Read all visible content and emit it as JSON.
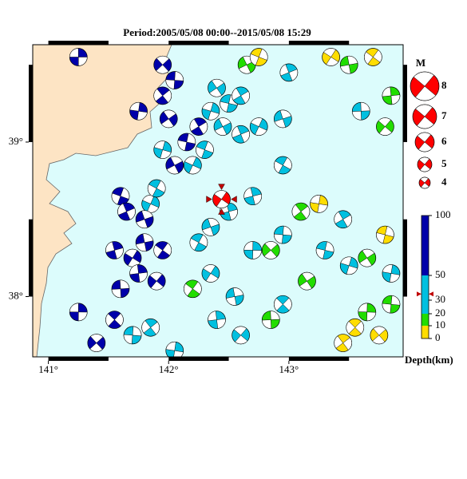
{
  "map": {
    "title": "Period:2005/05/08 00:00--2015/05/08 15:29",
    "xlim": [
      140.87,
      143.95
    ],
    "ylim": [
      37.61,
      39.63
    ],
    "xticks": [
      {
        "value": 141,
        "label": "141°"
      },
      {
        "value": 142,
        "label": "142°"
      },
      {
        "value": 143,
        "label": "143°"
      }
    ],
    "yticks": [
      {
        "value": 39,
        "label": "39°"
      },
      {
        "value": 38,
        "label": "38°"
      }
    ],
    "events": {
      "lon": [
        141.25,
        141.95,
        142.05,
        141.95,
        141.75,
        142.0,
        142.15,
        142.25,
        141.95,
        142.05,
        141.6,
        141.65,
        141.85,
        141.8,
        141.9,
        141.55,
        141.7,
        141.8,
        141.95,
        141.75,
        141.9,
        141.6,
        141.55,
        141.25,
        141.4,
        141.7,
        141.85,
        142.05,
        142.4,
        142.5,
        142.6,
        142.35,
        142.45,
        142.3,
        142.6,
        142.2,
        142.35,
        142.25,
        142.5,
        142.35,
        142.55,
        142.2,
        142.4,
        142.6,
        142.85,
        142.95,
        142.7,
        142.85,
        142.95,
        143.1,
        143.25,
        143.15,
        143.3,
        143.45,
        143.5,
        142.65,
        142.75,
        143.0,
        142.75,
        142.95,
        142.95,
        142.7,
        143.35,
        143.5,
        143.7,
        143.85,
        143.8,
        143.6,
        143.55,
        143.65,
        143.75,
        143.85,
        143.45,
        143.85,
        143.65,
        143.8
      ],
      "lat": [
        39.55,
        39.5,
        39.4,
        39.3,
        39.2,
        39.15,
        39.0,
        39.1,
        38.95,
        38.85,
        38.65,
        38.55,
        38.6,
        38.5,
        38.7,
        38.3,
        38.25,
        38.35,
        38.3,
        38.15,
        38.1,
        38.05,
        37.85,
        37.9,
        37.7,
        37.75,
        37.8,
        37.65,
        39.35,
        39.25,
        39.3,
        39.2,
        39.1,
        38.95,
        39.05,
        38.85,
        38.45,
        38.35,
        38.55,
        38.15,
        38.0,
        38.05,
        37.85,
        37.75,
        37.85,
        37.95,
        38.3,
        38.3,
        38.4,
        38.55,
        38.6,
        38.1,
        38.3,
        38.5,
        38.2,
        39.5,
        39.55,
        39.45,
        39.1,
        39.15,
        38.85,
        38.65,
        39.55,
        39.5,
        39.55,
        39.3,
        39.1,
        39.2,
        37.8,
        37.9,
        37.75,
        37.95,
        37.7,
        38.15,
        38.25,
        38.4
      ],
      "depth": [
        60,
        70,
        60,
        60,
        70,
        55,
        60,
        80,
        40,
        60,
        90,
        80,
        45,
        70,
        40,
        75,
        80,
        70,
        65,
        80,
        70,
        55,
        70,
        60,
        80,
        40,
        30,
        40,
        45,
        40,
        35,
        40,
        45,
        40,
        35,
        40,
        40,
        45,
        25,
        40,
        35,
        15,
        25,
        30,
        15,
        40,
        25,
        10,
        30,
        15,
        5,
        15,
        40,
        40,
        25,
        15,
        5,
        45,
        35,
        20,
        35,
        30,
        5,
        15,
        5,
        10,
        15,
        40,
        5,
        10,
        5,
        10,
        5,
        20,
        10,
        5
      ]
    },
    "main_event": {
      "lon": 142.44,
      "lat": 38.63,
      "depth": 35
    },
    "magnitude_legend": {
      "title": "M",
      "values": [
        8,
        7,
        6,
        5,
        4
      ]
    },
    "depth_scale": {
      "title": "Depth(km)",
      "ticks": [
        100,
        50,
        30,
        20,
        10,
        0
      ],
      "bands": [
        {
          "from": 50,
          "to": 100,
          "color": "#0000aa"
        },
        {
          "from": 20,
          "to": 50,
          "color": "#00c0e0"
        },
        {
          "from": 10,
          "to": 20,
          "color": "#22dd00"
        },
        {
          "from": 0,
          "to": 10,
          "color": "#ffdd00"
        }
      ]
    }
  }
}
